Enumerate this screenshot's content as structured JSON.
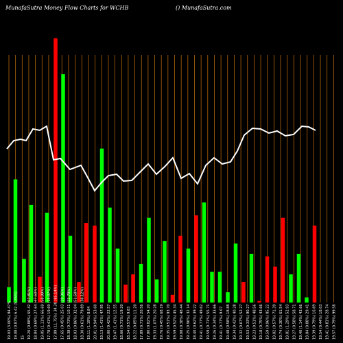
{
  "header": {
    "title": "MunafaSutra  Money Flow  Charts for WCHB",
    "site": "() MunafaSutra.com"
  },
  "colors": {
    "background": "#000000",
    "up": "#00ff00",
    "down": "#ff0000",
    "grid": "#b8680a",
    "line": "#ffffff"
  },
  "chart_data": {
    "type": "bar",
    "grid": "vertical",
    "categories": [
      "19.03 (3.00%) 84.47%",
      "19.08 (0.87%) 6.42 (5.76%)",
      "15",
      "19.20 (0.88%) 65.42 (67.81%)",
      "18.84 (0.69%) 27.64 (47.50%)",
      "19.05 (1.11%) 66.69 (58.99%)",
      "17.78 (0.41%) 19.69 (15.07%)",
      "17.89 (11.75%) 34.30 (85.14%)",
      "17.65 (0.45%) 25.03 (29.36%)",
      "18.38 (0.73%) 10.11 (22.79%)",
      "18.03 (0.86%) 32.04 (51.58%)",
      "18.30 (0.61%) 79.89 (36.12%)",
      "19.11 (1.19%) 8.84",
      "20.01 (0.94%) 53.60",
      "19.13 (1.41%) 47.95",
      "20.00 (0.42%) 22.57",
      "19.47 (1.41%) 12.55",
      "18.66 (0.71%) 19.20",
      "18.54 (0.57%) 9.83",
      "18.22 (0.85%) 11.20",
      "17.89 (0.71%) 20.56",
      "17.80 (0.82%) 54.20",
      "19.33 (1.07%) 20.28",
      "19.76 (0.45%) 68.19",
      "19.35 (0.51%) 93.70",
      "19.59 (0.52%) 45.34",
      "19.08 (0.38%) 48.44",
      "19.25 (0.96%) 32.14",
      "18.40 (0.62%) 39.22",
      "19.41 (0.77%) 49.62",
      "19.59 (0.71%) 55.71",
      "19.26 (0.34%) 33.66",
      "19.41 (0.77%) 9.07",
      "19.48 (0.58%) 18.88",
      "19.34 (0.42%) 40.28",
      "19.32 (0.67%) 52.27",
      "19.53 (0.33%) 90.27",
      "19.23 (0.51%) 48.56",
      "19.18 (0.75%) 43.66",
      "19.59 (0.96%) 85.22",
      "19.82 (0.57%) 71.39",
      "19.74 (0.30%) 61.54",
      "19.81 (1.29%) 52.93",
      "19.27 (0.58%) 58.71",
      "19.40 (1.14%) 43.66",
      "19.84 (0.88%) 29.41",
      "19.39 (0.79%) 16.69",
      "19.54 (0.44%) 18.03",
      "19.41 (0.81%) 28.74",
      "19.57 (0.79%) 99.58"
    ],
    "bars": {
      "direction": [
        "up",
        "up",
        "up",
        "up",
        "down",
        "up",
        "down",
        "up",
        "up",
        "up",
        "down",
        "down",
        "down",
        "up",
        "up",
        "up",
        "down",
        "down",
        "up",
        "up",
        "up",
        "down",
        "up",
        "up",
        "up",
        "down",
        "down",
        "up",
        "down",
        "up",
        "up",
        "up",
        "up",
        "up",
        "down",
        "up",
        "up",
        "down",
        "up",
        "down",
        "down",
        "up",
        "up",
        "up",
        "down",
        "down",
        "up",
        "up",
        "up",
        "down"
      ],
      "values": [
        5.8,
        46.5,
        9.8,
        39,
        3.1,
        4.3,
        35.6,
        2.3,
        21,
        69.5,
        13.9,
        45.6,
        3.1,
        34.4,
        38.4,
        34.4,
        5.5,
        43.4,
        39.4,
        6.2,
        1.4,
        6.2,
        9.0,
        38.4,
        6.8,
        1.7,
        25.8,
        8.8,
        27.1,
        40.1,
        5.2,
        0.5,
        12.4,
        23.5,
        5.3,
        12.8,
        3.0,
        0.8,
        12.4,
        27.7,
        8.8,
        1.0,
        4.1,
        4.0,
        25.5,
        3.2,
        19.2,
        12.5,
        35.1,
        33.2
      ]
    },
    "bar_heights": [
      3.7,
      26.3,
      10.5,
      35.3,
      5.1,
      0,
      31.7,
      87,
      19.3,
      7.7,
      31.7,
      26.3,
      7.6,
      4.7,
      57.3,
      33.7,
      20.5,
      5.3,
      11.5,
      14.4,
      27.7,
      10.3,
      0,
      0,
      26.6,
      3.5,
      25.2,
      20.9,
      30,
      0,
      36.3,
      12.5,
      12,
      5,
      22.5,
      9.5,
      19.5,
      0.6,
      17.6,
      14.4,
      36,
      10.3,
      21.1,
      0.5,
      20,
      3,
      25,
      0,
      2.5,
      0
    ],
    "line": {
      "values": [
        51.3,
        53.8,
        53.6,
        57.3,
        57.0,
        58.3,
        45.4,
        45.4,
        42.7,
        44.4,
        41.7,
        37.5,
        35.0,
        39.0,
        41.0,
        42.9,
        43.0,
        40.7,
        40.8,
        44.5,
        47.2,
        43.2,
        45.2,
        48.8,
        39.5,
        39.8,
        43.6,
        40.6,
        45.5,
        47.1,
        45.2,
        46.1,
        51.6,
        56.8,
        58.0,
        57.7,
        55.6,
        56.6,
        55.5,
        56.5,
        58.4,
        59.2,
        58.6,
        53.0,
        55.5,
        56.0,
        57.0,
        57.5,
        58.0,
        57.4
      ]
    },
    "ylim": [
      0,
      100
    ]
  }
}
